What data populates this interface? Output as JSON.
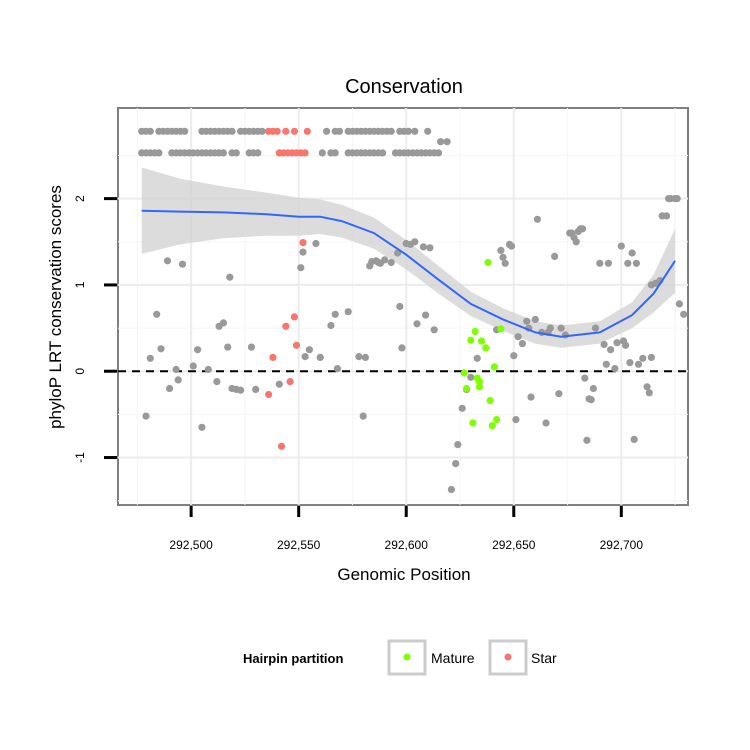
{
  "chart_data": {
    "type": "scatter",
    "title": "Conservation",
    "xlabel": "Genomic Position",
    "ylabel": "phyloP LRT conservation scores",
    "xlim": [
      292466,
      292731
    ],
    "ylim": [
      -1.55,
      3.05
    ],
    "x_ticks": [
      292500,
      292550,
      292600,
      292650,
      292700
    ],
    "x_tick_labels": [
      "292,500",
      "292,550",
      "292,600",
      "292,650",
      "292,700"
    ],
    "y_ticks": [
      -1,
      0,
      1,
      2
    ],
    "y_tick_labels": [
      "-1",
      "0",
      "1",
      "2"
    ],
    "reference_line": {
      "y": 0,
      "style": "dashed"
    },
    "grid": true,
    "legend": {
      "title": "Hairpin partition",
      "position": "bottom",
      "entries": [
        {
          "label": "Mature",
          "color": "#7fff00"
        },
        {
          "label": "Star",
          "color": "#f8766d"
        }
      ]
    },
    "colors": {
      "other": "#999999",
      "smooth": "#3366ff",
      "ribbon": "#d3d3d3"
    },
    "series": [
      {
        "name": "Other",
        "points": [
          [
            292477,
            2.78
          ],
          [
            292479,
            2.78
          ],
          [
            292481,
            2.78
          ],
          [
            292485,
            2.78
          ],
          [
            292487,
            2.78
          ],
          [
            292489,
            2.78
          ],
          [
            292491,
            2.78
          ],
          [
            292493,
            2.78
          ],
          [
            292495,
            2.78
          ],
          [
            292497,
            2.78
          ],
          [
            292505,
            2.78
          ],
          [
            292507,
            2.78
          ],
          [
            292509,
            2.78
          ],
          [
            292511,
            2.78
          ],
          [
            292513,
            2.78
          ],
          [
            292515,
            2.78
          ],
          [
            292517,
            2.78
          ],
          [
            292519,
            2.78
          ],
          [
            292523,
            2.78
          ],
          [
            292525,
            2.78
          ],
          [
            292527,
            2.78
          ],
          [
            292529,
            2.78
          ],
          [
            292531,
            2.78
          ],
          [
            292533,
            2.78
          ],
          [
            292563,
            2.78
          ],
          [
            292567,
            2.78
          ],
          [
            292569,
            2.78
          ],
          [
            292573,
            2.78
          ],
          [
            292575,
            2.78
          ],
          [
            292577,
            2.78
          ],
          [
            292579,
            2.78
          ],
          [
            292581,
            2.78
          ],
          [
            292583,
            2.78
          ],
          [
            292585,
            2.78
          ],
          [
            292587,
            2.78
          ],
          [
            292589,
            2.78
          ],
          [
            292591,
            2.78
          ],
          [
            292593,
            2.78
          ],
          [
            292597,
            2.78
          ],
          [
            292599,
            2.78
          ],
          [
            292601,
            2.78
          ],
          [
            292604,
            2.78
          ],
          [
            292610,
            2.78
          ],
          [
            292616,
            2.66
          ],
          [
            292619,
            2.66
          ],
          [
            292477,
            2.53
          ],
          [
            292479,
            2.53
          ],
          [
            292481,
            2.53
          ],
          [
            292483,
            2.53
          ],
          [
            292485,
            2.53
          ],
          [
            292491,
            2.53
          ],
          [
            292493,
            2.53
          ],
          [
            292495,
            2.53
          ],
          [
            292497,
            2.53
          ],
          [
            292499,
            2.53
          ],
          [
            292501,
            2.53
          ],
          [
            292503,
            2.53
          ],
          [
            292505,
            2.53
          ],
          [
            292507,
            2.53
          ],
          [
            292509,
            2.53
          ],
          [
            292511,
            2.53
          ],
          [
            292513,
            2.53
          ],
          [
            292515,
            2.53
          ],
          [
            292519,
            2.53
          ],
          [
            292521,
            2.53
          ],
          [
            292527,
            2.53
          ],
          [
            292529,
            2.53
          ],
          [
            292531,
            2.53
          ],
          [
            292561,
            2.53
          ],
          [
            292565,
            2.53
          ],
          [
            292567,
            2.53
          ],
          [
            292573,
            2.53
          ],
          [
            292575,
            2.53
          ],
          [
            292577,
            2.53
          ],
          [
            292579,
            2.53
          ],
          [
            292581,
            2.53
          ],
          [
            292583,
            2.53
          ],
          [
            292585,
            2.53
          ],
          [
            292587,
            2.53
          ],
          [
            292589,
            2.53
          ],
          [
            292595,
            2.53
          ],
          [
            292597,
            2.53
          ],
          [
            292599,
            2.53
          ],
          [
            292601,
            2.53
          ],
          [
            292603,
            2.53
          ],
          [
            292605,
            2.53
          ],
          [
            292607,
            2.53
          ],
          [
            292609,
            2.53
          ],
          [
            292611,
            2.53
          ],
          [
            292613,
            2.53
          ],
          [
            292615,
            2.53
          ],
          [
            292479,
            -0.52
          ],
          [
            292481,
            0.15
          ],
          [
            292484,
            0.66
          ],
          [
            292486,
            0.26
          ],
          [
            292489,
            1.28
          ],
          [
            292490,
            -0.2
          ],
          [
            292493,
            0.02
          ],
          [
            292494,
            -0.1
          ],
          [
            292496,
            1.24
          ],
          [
            292501,
            0.06
          ],
          [
            292503,
            0.25
          ],
          [
            292505,
            -0.65
          ],
          [
            292508,
            0.02
          ],
          [
            292512,
            -0.12
          ],
          [
            292513,
            0.52
          ],
          [
            292515,
            0.56
          ],
          [
            292517,
            0.28
          ],
          [
            292518,
            1.09
          ],
          [
            292519,
            -0.2
          ],
          [
            292521,
            -0.21
          ],
          [
            292523,
            -0.22
          ],
          [
            292528,
            0.28
          ],
          [
            292530,
            -0.21
          ],
          [
            292541,
            -0.15
          ],
          [
            292551,
            1.2
          ],
          [
            292552,
            1.38
          ],
          [
            292553,
            0.17
          ],
          [
            292555,
            0.25
          ],
          [
            292558,
            1.48
          ],
          [
            292560,
            0.16
          ],
          [
            292565,
            0.53
          ],
          [
            292567,
            0.66
          ],
          [
            292568,
            0.03
          ],
          [
            292573,
            0.69
          ],
          [
            292578,
            0.17
          ],
          [
            292580,
            -0.52
          ],
          [
            292581,
            0.16
          ],
          [
            292583,
            1.22
          ],
          [
            292584,
            1.27
          ],
          [
            292586,
            1.28
          ],
          [
            292587,
            1.26
          ],
          [
            292588,
            1.25
          ],
          [
            292590,
            1.29
          ],
          [
            292593,
            1.26
          ],
          [
            292596,
            1.37
          ],
          [
            292597,
            0.75
          ],
          [
            292598,
            0.27
          ],
          [
            292600,
            1.48
          ],
          [
            292602,
            1.47
          ],
          [
            292604,
            1.5
          ],
          [
            292605,
            0.55
          ],
          [
            292608,
            1.44
          ],
          [
            292609,
            0.65
          ],
          [
            292611,
            1.43
          ],
          [
            292613,
            0.48
          ],
          [
            292621,
            -1.37
          ],
          [
            292623,
            -1.07
          ],
          [
            292624,
            -0.85
          ],
          [
            292626,
            -0.43
          ],
          [
            292628,
            -0.21
          ],
          [
            292630,
            -0.07
          ],
          [
            292633,
            0.15
          ],
          [
            292642,
            0.48
          ],
          [
            292644,
            1.4
          ],
          [
            292645,
            1.32
          ],
          [
            292646,
            1.25
          ],
          [
            292648,
            1.47
          ],
          [
            292649,
            1.45
          ],
          [
            292650,
            0.18
          ],
          [
            292651,
            -0.56
          ],
          [
            292652,
            0.4
          ],
          [
            292654,
            0.32
          ],
          [
            292656,
            0.58
          ],
          [
            292657,
            0.5
          ],
          [
            292658,
            -0.3
          ],
          [
            292660,
            0.6
          ],
          [
            292661,
            1.76
          ],
          [
            292663,
            0.45
          ],
          [
            292665,
            -0.6
          ],
          [
            292666,
            0.45
          ],
          [
            292667,
            0.5
          ],
          [
            292669,
            1.33
          ],
          [
            292671,
            -0.26
          ],
          [
            292672,
            0.5
          ],
          [
            292674,
            0.42
          ],
          [
            292676,
            1.6
          ],
          [
            292677,
            1.6
          ],
          [
            292678,
            1.55
          ],
          [
            292679,
            1.5
          ],
          [
            292680,
            1.62
          ],
          [
            292681,
            1.65
          ],
          [
            292682,
            1.65
          ],
          [
            292683,
            -0.08
          ],
          [
            292684,
            -0.8
          ],
          [
            292685,
            -0.32
          ],
          [
            292686,
            -0.33
          ],
          [
            292687,
            -0.2
          ],
          [
            292688,
            0.5
          ],
          [
            292690,
            1.25
          ],
          [
            292692,
            0.31
          ],
          [
            292693,
            0.08
          ],
          [
            292694,
            1.25
          ],
          [
            292695,
            0.25
          ],
          [
            292697,
            0.03
          ],
          [
            292698,
            0.33
          ],
          [
            292700,
            1.45
          ],
          [
            292701,
            0.35
          ],
          [
            292702,
            0.3
          ],
          [
            292703,
            1.25
          ],
          [
            292704,
            0.1
          ],
          [
            292705,
            1.37
          ],
          [
            292706,
            -0.79
          ],
          [
            292707,
            1.25
          ],
          [
            292708,
            0.08
          ],
          [
            292710,
            0.15
          ],
          [
            292712,
            -0.18
          ],
          [
            292713,
            -0.25
          ],
          [
            292714,
            0.16
          ],
          [
            292714,
            1.0
          ],
          [
            292716,
            1.02
          ],
          [
            292718,
            1.05
          ],
          [
            292719,
            1.8
          ],
          [
            292721,
            1.8
          ],
          [
            292722,
            2.0
          ],
          [
            292723,
            2.0
          ],
          [
            292725,
            2.0
          ],
          [
            292726,
            2.0
          ],
          [
            292727,
            0.78
          ],
          [
            292729,
            0.66
          ]
        ]
      },
      {
        "name": "Mature",
        "points": [
          [
            292627,
            -0.02
          ],
          [
            292628,
            -0.2
          ],
          [
            292630,
            0.36
          ],
          [
            292631,
            -0.6
          ],
          [
            292632,
            0.46
          ],
          [
            292633,
            -0.08
          ],
          [
            292634,
            -0.12
          ],
          [
            292634,
            -0.18
          ],
          [
            292635,
            0.35
          ],
          [
            292637,
            0.27
          ],
          [
            292638,
            1.26
          ],
          [
            292639,
            -0.34
          ],
          [
            292640,
            -0.63
          ],
          [
            292641,
            0.05
          ],
          [
            292642,
            -0.56
          ],
          [
            292644,
            0.49
          ]
        ]
      },
      {
        "name": "Star",
        "points": [
          [
            292536,
            -0.27
          ],
          [
            292538,
            0.16
          ],
          [
            292542,
            -0.87
          ],
          [
            292544,
            0.52
          ],
          [
            292546,
            -0.12
          ],
          [
            292548,
            0.63
          ],
          [
            292549,
            0.3
          ],
          [
            292552,
            1.49
          ],
          [
            292536,
            2.78
          ],
          [
            292538,
            2.78
          ],
          [
            292540,
            2.78
          ],
          [
            292544,
            2.78
          ],
          [
            292548,
            2.78
          ],
          [
            292554,
            2.78
          ],
          [
            292541,
            2.53
          ],
          [
            292543,
            2.53
          ],
          [
            292545,
            2.53
          ],
          [
            292547,
            2.53
          ],
          [
            292549,
            2.53
          ],
          [
            292551,
            2.53
          ],
          [
            292553,
            2.53
          ]
        ]
      }
    ],
    "smooth": {
      "method": "loess",
      "x": [
        292477,
        292495,
        292515,
        292535,
        292545,
        292550,
        292560,
        292570,
        292585,
        292600,
        292615,
        292630,
        292645,
        292660,
        292672,
        292690,
        292705,
        292715,
        292725
      ],
      "y": [
        1.86,
        1.85,
        1.84,
        1.82,
        1.8,
        1.79,
        1.79,
        1.74,
        1.6,
        1.35,
        1.06,
        0.78,
        0.6,
        0.45,
        0.4,
        0.45,
        0.65,
        0.9,
        1.28
      ],
      "ci_half_width": [
        0.5,
        0.38,
        0.3,
        0.25,
        0.23,
        0.22,
        0.2,
        0.19,
        0.18,
        0.17,
        0.16,
        0.14,
        0.13,
        0.13,
        0.13,
        0.13,
        0.15,
        0.22,
        0.37
      ]
    }
  }
}
